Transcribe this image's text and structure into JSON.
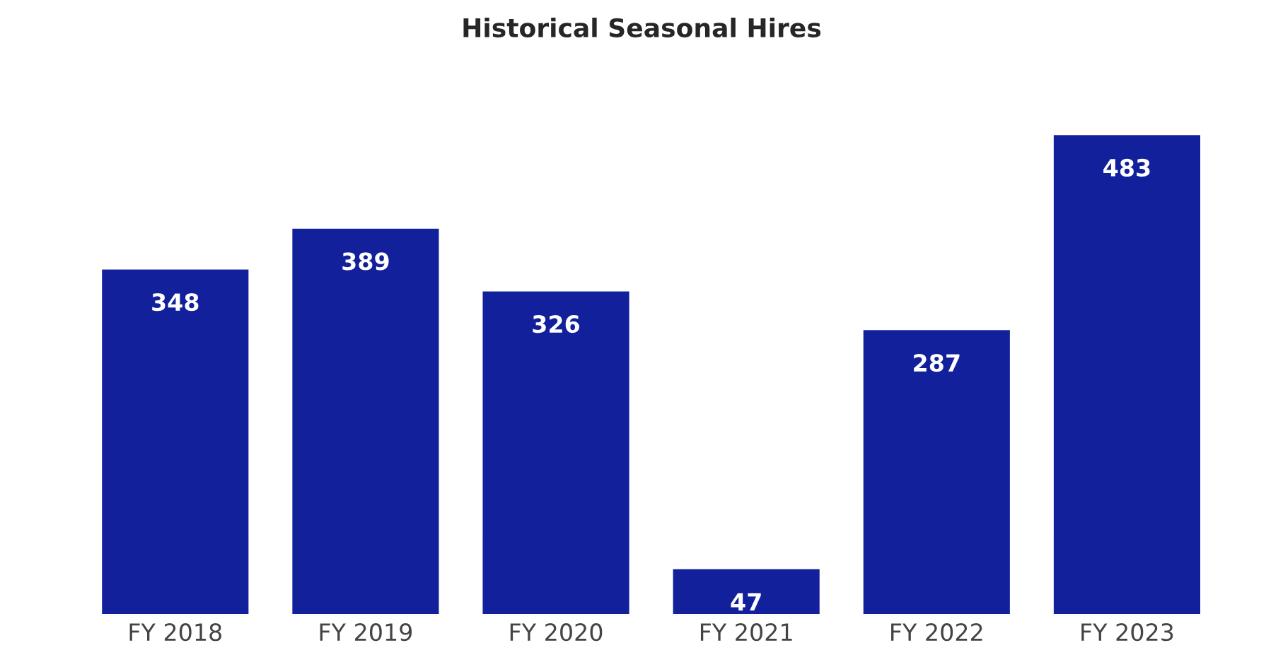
{
  "chart_data": {
    "type": "bar",
    "title": "Historical Seasonal Hires",
    "categories": [
      "FY 2018",
      "FY 2019",
      "FY 2020",
      "FY 2021",
      "FY 2022",
      "FY 2023"
    ],
    "values": [
      348,
      389,
      326,
      47,
      287,
      483
    ],
    "color": "#12209c",
    "data_labels": true,
    "grid": false,
    "legend": false,
    "tick_labels": "x"
  }
}
